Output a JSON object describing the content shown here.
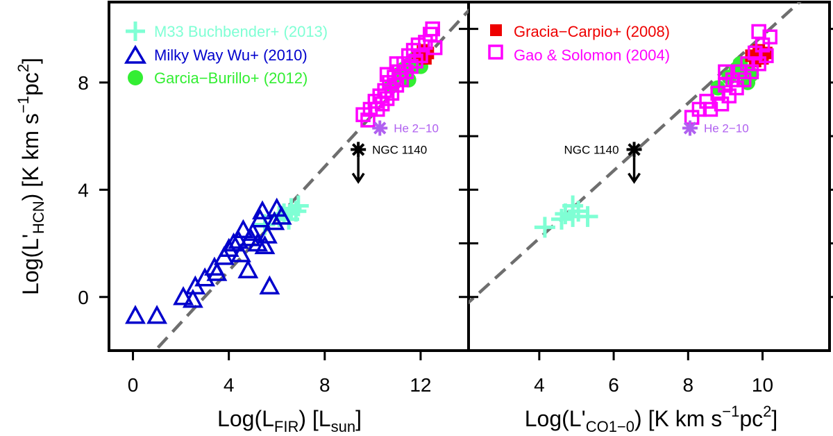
{
  "chart_data": [
    {
      "type": "scatter",
      "panel": "left",
      "xlabel": {
        "main": "Log(L",
        "sub": "FIR",
        "mid": ") [L",
        "sub2": "sun",
        "end": "]"
      },
      "ylabel": {
        "main": "Log(L'",
        "sub": "HCN",
        "mid": ") [K km s",
        "sup": "−1",
        "end": "pc",
        "sup2": "2",
        "close": "]"
      },
      "xlim": [
        -1,
        14
      ],
      "ylim": [
        -2,
        11
      ],
      "xticks": [
        0,
        4,
        8,
        12
      ],
      "yticks": [
        0,
        4,
        8
      ],
      "fit_line": {
        "slope": 0.97,
        "intercept": -2.9,
        "color": "#6e6e6e"
      },
      "series": [
        {
          "name": "M33 Buchbender+ (2013)",
          "marker": "plus",
          "color": "#7fffd4",
          "points": [
            [
              5.5,
              2.7
            ],
            [
              6.1,
              3.0
            ],
            [
              6.3,
              3.1
            ],
            [
              6.5,
              2.9
            ],
            [
              6.6,
              3.3
            ],
            [
              6.8,
              3.2
            ],
            [
              6.9,
              3.4
            ]
          ]
        },
        {
          "name": "Milky Way Wu+ (2010)",
          "marker": "triangle",
          "color": "#0000cc",
          "points": [
            [
              0.1,
              -0.7
            ],
            [
              1.0,
              -0.7
            ],
            [
              2.1,
              0.0
            ],
            [
              2.5,
              -0.1
            ],
            [
              2.6,
              0.4
            ],
            [
              3.0,
              0.7
            ],
            [
              3.4,
              1.1
            ],
            [
              3.5,
              0.9
            ],
            [
              3.8,
              1.5
            ],
            [
              4.0,
              1.8
            ],
            [
              4.2,
              2.0
            ],
            [
              4.4,
              2.1
            ],
            [
              4.5,
              1.6
            ],
            [
              4.6,
              2.5
            ],
            [
              4.8,
              1.0
            ],
            [
              4.9,
              2.2
            ],
            [
              5.0,
              2.4
            ],
            [
              5.2,
              2.0
            ],
            [
              5.3,
              2.9
            ],
            [
              5.4,
              3.2
            ],
            [
              5.5,
              1.9
            ],
            [
              5.6,
              2.3
            ],
            [
              5.7,
              0.4
            ],
            [
              5.9,
              2.8
            ],
            [
              6.0,
              3.3
            ],
            [
              6.2,
              3.0
            ]
          ]
        },
        {
          "name": "Garcia−Burillo+ (2012)",
          "marker": "circle",
          "color": "#33ee33",
          "points": [
            [
              10.8,
              7.9
            ],
            [
              11.1,
              8.3
            ],
            [
              11.3,
              8.5
            ],
            [
              11.5,
              8.1
            ],
            [
              11.6,
              8.7
            ],
            [
              11.8,
              8.9
            ],
            [
              12.0,
              8.6
            ]
          ]
        },
        {
          "name": "Gracia−Carpio+ (2008)",
          "marker": "square-filled",
          "color": "#ee0000",
          "points": [
            [
              11.9,
              9.0
            ],
            [
              12.1,
              9.2
            ],
            [
              12.2,
              8.9
            ],
            [
              12.3,
              9.1
            ]
          ]
        },
        {
          "name": "Gao & Solomon (2004)",
          "marker": "square-open",
          "color": "#ff00ff",
          "points": [
            [
              9.6,
              6.8
            ],
            [
              9.8,
              6.6
            ],
            [
              9.9,
              7.0
            ],
            [
              10.1,
              7.3
            ],
            [
              10.2,
              7.0
            ],
            [
              10.3,
              7.5
            ],
            [
              10.4,
              7.2
            ],
            [
              10.5,
              7.7
            ],
            [
              10.6,
              7.4
            ],
            [
              10.7,
              8.0
            ],
            [
              10.8,
              7.6
            ],
            [
              10.9,
              8.2
            ],
            [
              11.0,
              7.9
            ],
            [
              11.1,
              8.4
            ],
            [
              11.2,
              8.1
            ],
            [
              11.3,
              8.7
            ],
            [
              11.4,
              8.4
            ],
            [
              11.5,
              9.0
            ],
            [
              11.6,
              8.6
            ],
            [
              11.7,
              9.2
            ],
            [
              11.8,
              8.8
            ],
            [
              11.9,
              9.4
            ],
            [
              12.0,
              9.0
            ],
            [
              12.2,
              9.5
            ],
            [
              12.4,
              9.8
            ],
            [
              12.5,
              10.0
            ],
            [
              12.6,
              9.3
            ],
            [
              10.6,
              8.3
            ],
            [
              11.0,
              8.7
            ]
          ]
        }
      ],
      "special": [
        {
          "name": "He 2−10",
          "marker": "asterisk",
          "color": "#b060f0",
          "point": [
            10.3,
            6.3
          ],
          "label_side": "right"
        },
        {
          "name": "NGC 1140",
          "marker": "asterisk-upper-limit",
          "color": "#000000",
          "point": [
            9.4,
            5.5
          ],
          "arrow_to": 4.3,
          "label_side": "right"
        }
      ]
    },
    {
      "type": "scatter",
      "panel": "right",
      "xlabel": {
        "main": "Log(L'",
        "sub": "CO1−0",
        "mid": ") [K km s",
        "sup": "−1",
        "end": "pc",
        "sup2": "2",
        "close": "]"
      },
      "xlim": [
        2.1,
        11.8
      ],
      "ylim": [
        -2,
        11
      ],
      "xticks": [
        4,
        6,
        8,
        10
      ],
      "yticks": [
        0,
        4,
        8
      ],
      "fit_line": {
        "slope": 1.26,
        "intercept": -2.85,
        "color": "#6e6e6e"
      },
      "series": [
        {
          "name": "M33 Buchbender+ (2013)",
          "marker": "plus",
          "color": "#7fffd4",
          "points": [
            [
              4.15,
              2.6
            ],
            [
              4.6,
              2.9
            ],
            [
              4.7,
              3.1
            ],
            [
              4.9,
              3.0
            ],
            [
              4.9,
              3.4
            ],
            [
              5.05,
              3.2
            ],
            [
              5.3,
              3.0
            ]
          ]
        },
        {
          "name": "Garcia−Burillo+ (2012)",
          "marker": "circle",
          "color": "#33ee33",
          "points": [
            [
              8.8,
              7.8
            ],
            [
              9.1,
              8.2
            ],
            [
              9.3,
              8.5
            ],
            [
              9.4,
              8.7
            ],
            [
              9.5,
              8.4
            ],
            [
              9.6,
              8.0
            ],
            [
              9.7,
              8.3
            ]
          ]
        },
        {
          "name": "Gracia−Carpio+ (2008)",
          "marker": "square-filled",
          "color": "#ee0000",
          "points": [
            [
              9.7,
              9.0
            ],
            [
              9.8,
              8.8
            ],
            [
              9.9,
              9.2
            ],
            [
              10.0,
              8.9
            ],
            [
              10.1,
              9.1
            ]
          ]
        },
        {
          "name": "Gao & Solomon (2004)",
          "marker": "square-open",
          "color": "#ff00ff",
          "points": [
            [
              8.1,
              6.7
            ],
            [
              8.3,
              7.0
            ],
            [
              8.5,
              7.3
            ],
            [
              8.6,
              7.0
            ],
            [
              8.8,
              7.6
            ],
            [
              8.9,
              7.2
            ],
            [
              9.0,
              7.9
            ],
            [
              9.1,
              7.5
            ],
            [
              9.2,
              8.1
            ],
            [
              9.3,
              7.8
            ],
            [
              9.4,
              8.4
            ],
            [
              9.5,
              8.1
            ],
            [
              9.6,
              8.7
            ],
            [
              9.7,
              8.4
            ],
            [
              9.8,
              9.1
            ],
            [
              9.9,
              8.7
            ],
            [
              10.0,
              9.4
            ],
            [
              10.1,
              9.0
            ],
            [
              10.2,
              9.7
            ],
            [
              9.9,
              9.9
            ],
            [
              9.0,
              8.4
            ]
          ]
        }
      ],
      "special": [
        {
          "name": "He 2−10",
          "marker": "asterisk",
          "color": "#b060f0",
          "point": [
            8.05,
            6.3
          ],
          "label_side": "right"
        },
        {
          "name": "NGC 1140",
          "marker": "asterisk-upper-limit",
          "color": "#000000",
          "point": [
            6.55,
            5.5
          ],
          "arrow_to": 4.3,
          "label_side": "left"
        }
      ]
    }
  ],
  "legend_left": [
    "M33 Buchbender+ (2013)",
    "Milky Way Wu+ (2010)",
    "Garcia−Burillo+ (2012)"
  ],
  "legend_right": [
    "Gracia−Carpio+ (2008)",
    "Gao & Solomon (2004)"
  ]
}
